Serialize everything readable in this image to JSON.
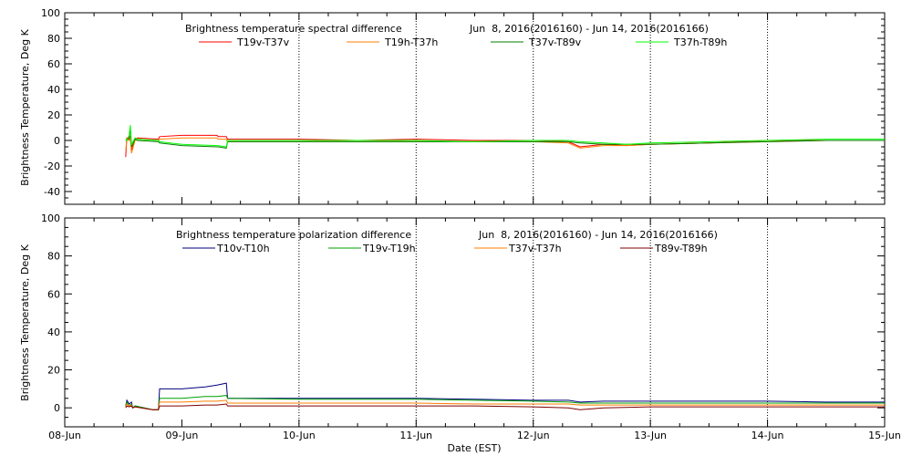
{
  "chart_data": [
    {
      "type": "line",
      "title": "Brightness temperature spectral difference",
      "date_range": "Jun  8, 2016(2016160) - Jun 14, 2016(2016166)",
      "ylabel": "Brightness Temperature, Deg K",
      "xlabel": "",
      "ylim": [
        -50,
        100
      ],
      "yticks": [
        -40,
        -20,
        0,
        20,
        40,
        60,
        80,
        100
      ],
      "xlim": [
        0,
        7
      ],
      "grid_x_at": [
        2,
        3,
        4,
        5,
        6
      ],
      "legend_position": "top",
      "series": [
        {
          "name": "T19v-T37v",
          "color": "#ff0000",
          "x": [
            0.52,
            0.53,
            0.55,
            0.56,
            0.57,
            0.6,
            0.62,
            0.8,
            0.81,
            1.0,
            1.3,
            1.31,
            1.38,
            1.39,
            2.0,
            2.5,
            3.0,
            3.5,
            4.0,
            4.3,
            4.4,
            4.6,
            4.8,
            5.0,
            5.5,
            6.0,
            6.5,
            7.0
          ],
          "values": [
            -13,
            2,
            1,
            3,
            -8,
            1,
            2,
            1,
            3,
            4,
            4,
            3,
            3,
            1,
            1,
            0,
            1,
            0,
            0,
            -1,
            -5,
            -3,
            -4,
            -3,
            -2,
            0,
            0,
            0
          ]
        },
        {
          "name": "T19h-T37h",
          "color": "#ff7f00",
          "x": [
            0.52,
            0.53,
            0.55,
            0.56,
            0.57,
            0.6,
            0.62,
            0.8,
            0.81,
            1.0,
            1.3,
            1.31,
            1.38,
            1.39,
            2.0,
            2.5,
            3.0,
            3.5,
            4.0,
            4.3,
            4.4,
            4.6,
            4.8,
            5.0,
            5.5,
            6.0,
            6.5,
            7.0
          ],
          "values": [
            -8,
            1,
            0,
            2,
            -10,
            0,
            1,
            0,
            1,
            2,
            2,
            1,
            1,
            -1,
            -1,
            -1,
            -1,
            -1,
            -1,
            -2,
            -6,
            -4,
            -4,
            -3,
            -2,
            -1,
            0,
            0
          ]
        },
        {
          "name": "T37v-T89v",
          "color": "#007f00",
          "x": [
            0.52,
            0.53,
            0.55,
            0.56,
            0.57,
            0.6,
            0.62,
            0.8,
            0.81,
            1.0,
            1.3,
            1.31,
            1.38,
            1.39,
            2.0,
            2.5,
            3.0,
            3.5,
            4.0,
            4.3,
            4.4,
            4.6,
            4.8,
            5.0,
            5.5,
            6.0,
            6.5,
            7.0
          ],
          "values": [
            0,
            0,
            2,
            10,
            -5,
            1,
            0,
            -1,
            -2,
            -4,
            -5,
            -5,
            -6,
            -1,
            -1,
            -1,
            -1,
            -1,
            -1,
            -1,
            -2,
            -3,
            -3,
            -3,
            -2,
            -1,
            0,
            0
          ]
        },
        {
          "name": "T37h-T89h",
          "color": "#00ff00",
          "x": [
            0.52,
            0.53,
            0.55,
            0.56,
            0.57,
            0.6,
            0.62,
            0.8,
            0.81,
            1.0,
            1.3,
            1.31,
            1.38,
            1.39,
            2.0,
            2.5,
            3.0,
            3.5,
            4.0,
            4.3,
            4.4,
            4.6,
            4.8,
            5.0,
            5.5,
            6.0,
            6.5,
            7.0
          ],
          "values": [
            1,
            0,
            4,
            12,
            -3,
            2,
            1,
            0,
            -1,
            -3,
            -4,
            -4,
            -5,
            0,
            0,
            0,
            0,
            -1,
            0,
            0,
            -1,
            -2,
            -3,
            -2,
            -1,
            0,
            1,
            1
          ]
        }
      ]
    },
    {
      "type": "line",
      "title": "Brightness temperature polarization difference",
      "date_range": "Jun  8, 2016(2016160) - Jun 14, 2016(2016166)",
      "ylabel": "Brightness Temperature, Deg K",
      "xlabel": "Date (EST)",
      "ylim": [
        -10,
        100
      ],
      "yticks": [
        0,
        20,
        40,
        60,
        80,
        100
      ],
      "xlim": [
        0,
        7
      ],
      "xticks": [
        "08-Jun",
        "09-Jun",
        "10-Jun",
        "11-Jun",
        "12-Jun",
        "13-Jun",
        "14-Jun",
        "15-Jun"
      ],
      "grid_x_at": [
        2,
        3,
        4,
        5,
        6
      ],
      "legend_position": "top",
      "series": [
        {
          "name": "T10v-T10h",
          "color": "#00007f",
          "x": [
            0.52,
            0.53,
            0.55,
            0.57,
            0.58,
            0.6,
            0.75,
            0.8,
            0.81,
            1.0,
            1.2,
            1.3,
            1.38,
            1.39,
            2.0,
            2.5,
            3.0,
            3.5,
            4.0,
            4.3,
            4.4,
            4.6,
            5.0,
            5.5,
            6.0,
            6.5,
            7.0
          ],
          "values": [
            1,
            4,
            2,
            3,
            0,
            1,
            -1,
            -1,
            10,
            10,
            11,
            12,
            13,
            5,
            5,
            5,
            5,
            4.5,
            4,
            4,
            3,
            3.5,
            3.5,
            3.5,
            3.5,
            3,
            3
          ]
        },
        {
          "name": "T19v-T19h",
          "color": "#00a000",
          "x": [
            0.52,
            0.53,
            0.55,
            0.57,
            0.58,
            0.6,
            0.75,
            0.8,
            0.81,
            1.0,
            1.2,
            1.3,
            1.38,
            1.39,
            2.0,
            2.5,
            3.0,
            3.5,
            4.0,
            4.3,
            4.4,
            4.6,
            5.0,
            5.5,
            6.0,
            6.5,
            7.0
          ],
          "values": [
            1,
            3,
            1,
            2,
            0,
            1,
            -1,
            -1,
            5,
            5,
            6,
            6,
            6.5,
            5,
            4.5,
            4.5,
            4.5,
            4,
            3.5,
            3,
            2.5,
            2.5,
            2.5,
            2.5,
            2.5,
            2.5,
            2.5
          ]
        },
        {
          "name": "T37v-T37h",
          "color": "#ff7f00",
          "x": [
            0.52,
            0.53,
            0.55,
            0.57,
            0.58,
            0.6,
            0.75,
            0.8,
            0.81,
            1.0,
            1.2,
            1.3,
            1.38,
            1.39,
            2.0,
            2.5,
            3.0,
            3.5,
            4.0,
            4.3,
            4.4,
            4.6,
            5.0,
            5.5,
            6.0,
            6.5,
            7.0
          ],
          "values": [
            0.5,
            2,
            1,
            1.5,
            0,
            0.5,
            -1,
            -1,
            3,
            3,
            3.5,
            3.5,
            4,
            2.5,
            2.5,
            2.5,
            2.5,
            2,
            2,
            2,
            1.5,
            1.5,
            1.5,
            1.5,
            1.5,
            1.5,
            1.5
          ]
        },
        {
          "name": "T89v-T89h",
          "color": "#7f0000",
          "x": [
            0.52,
            0.53,
            0.55,
            0.57,
            0.58,
            0.6,
            0.75,
            0.8,
            0.81,
            1.0,
            1.2,
            1.3,
            1.38,
            1.39,
            2.0,
            2.5,
            3.0,
            3.5,
            4.0,
            4.3,
            4.4,
            4.6,
            5.0,
            5.5,
            6.0,
            6.5,
            7.0
          ],
          "values": [
            0,
            1,
            0.5,
            1,
            0,
            0.5,
            -1,
            -1,
            1,
            1,
            1.5,
            1.5,
            2,
            1,
            1,
            1,
            1,
            1,
            0.5,
            0,
            -1,
            0,
            0.5,
            0.5,
            0.5,
            0.5,
            0.5
          ]
        }
      ]
    }
  ]
}
